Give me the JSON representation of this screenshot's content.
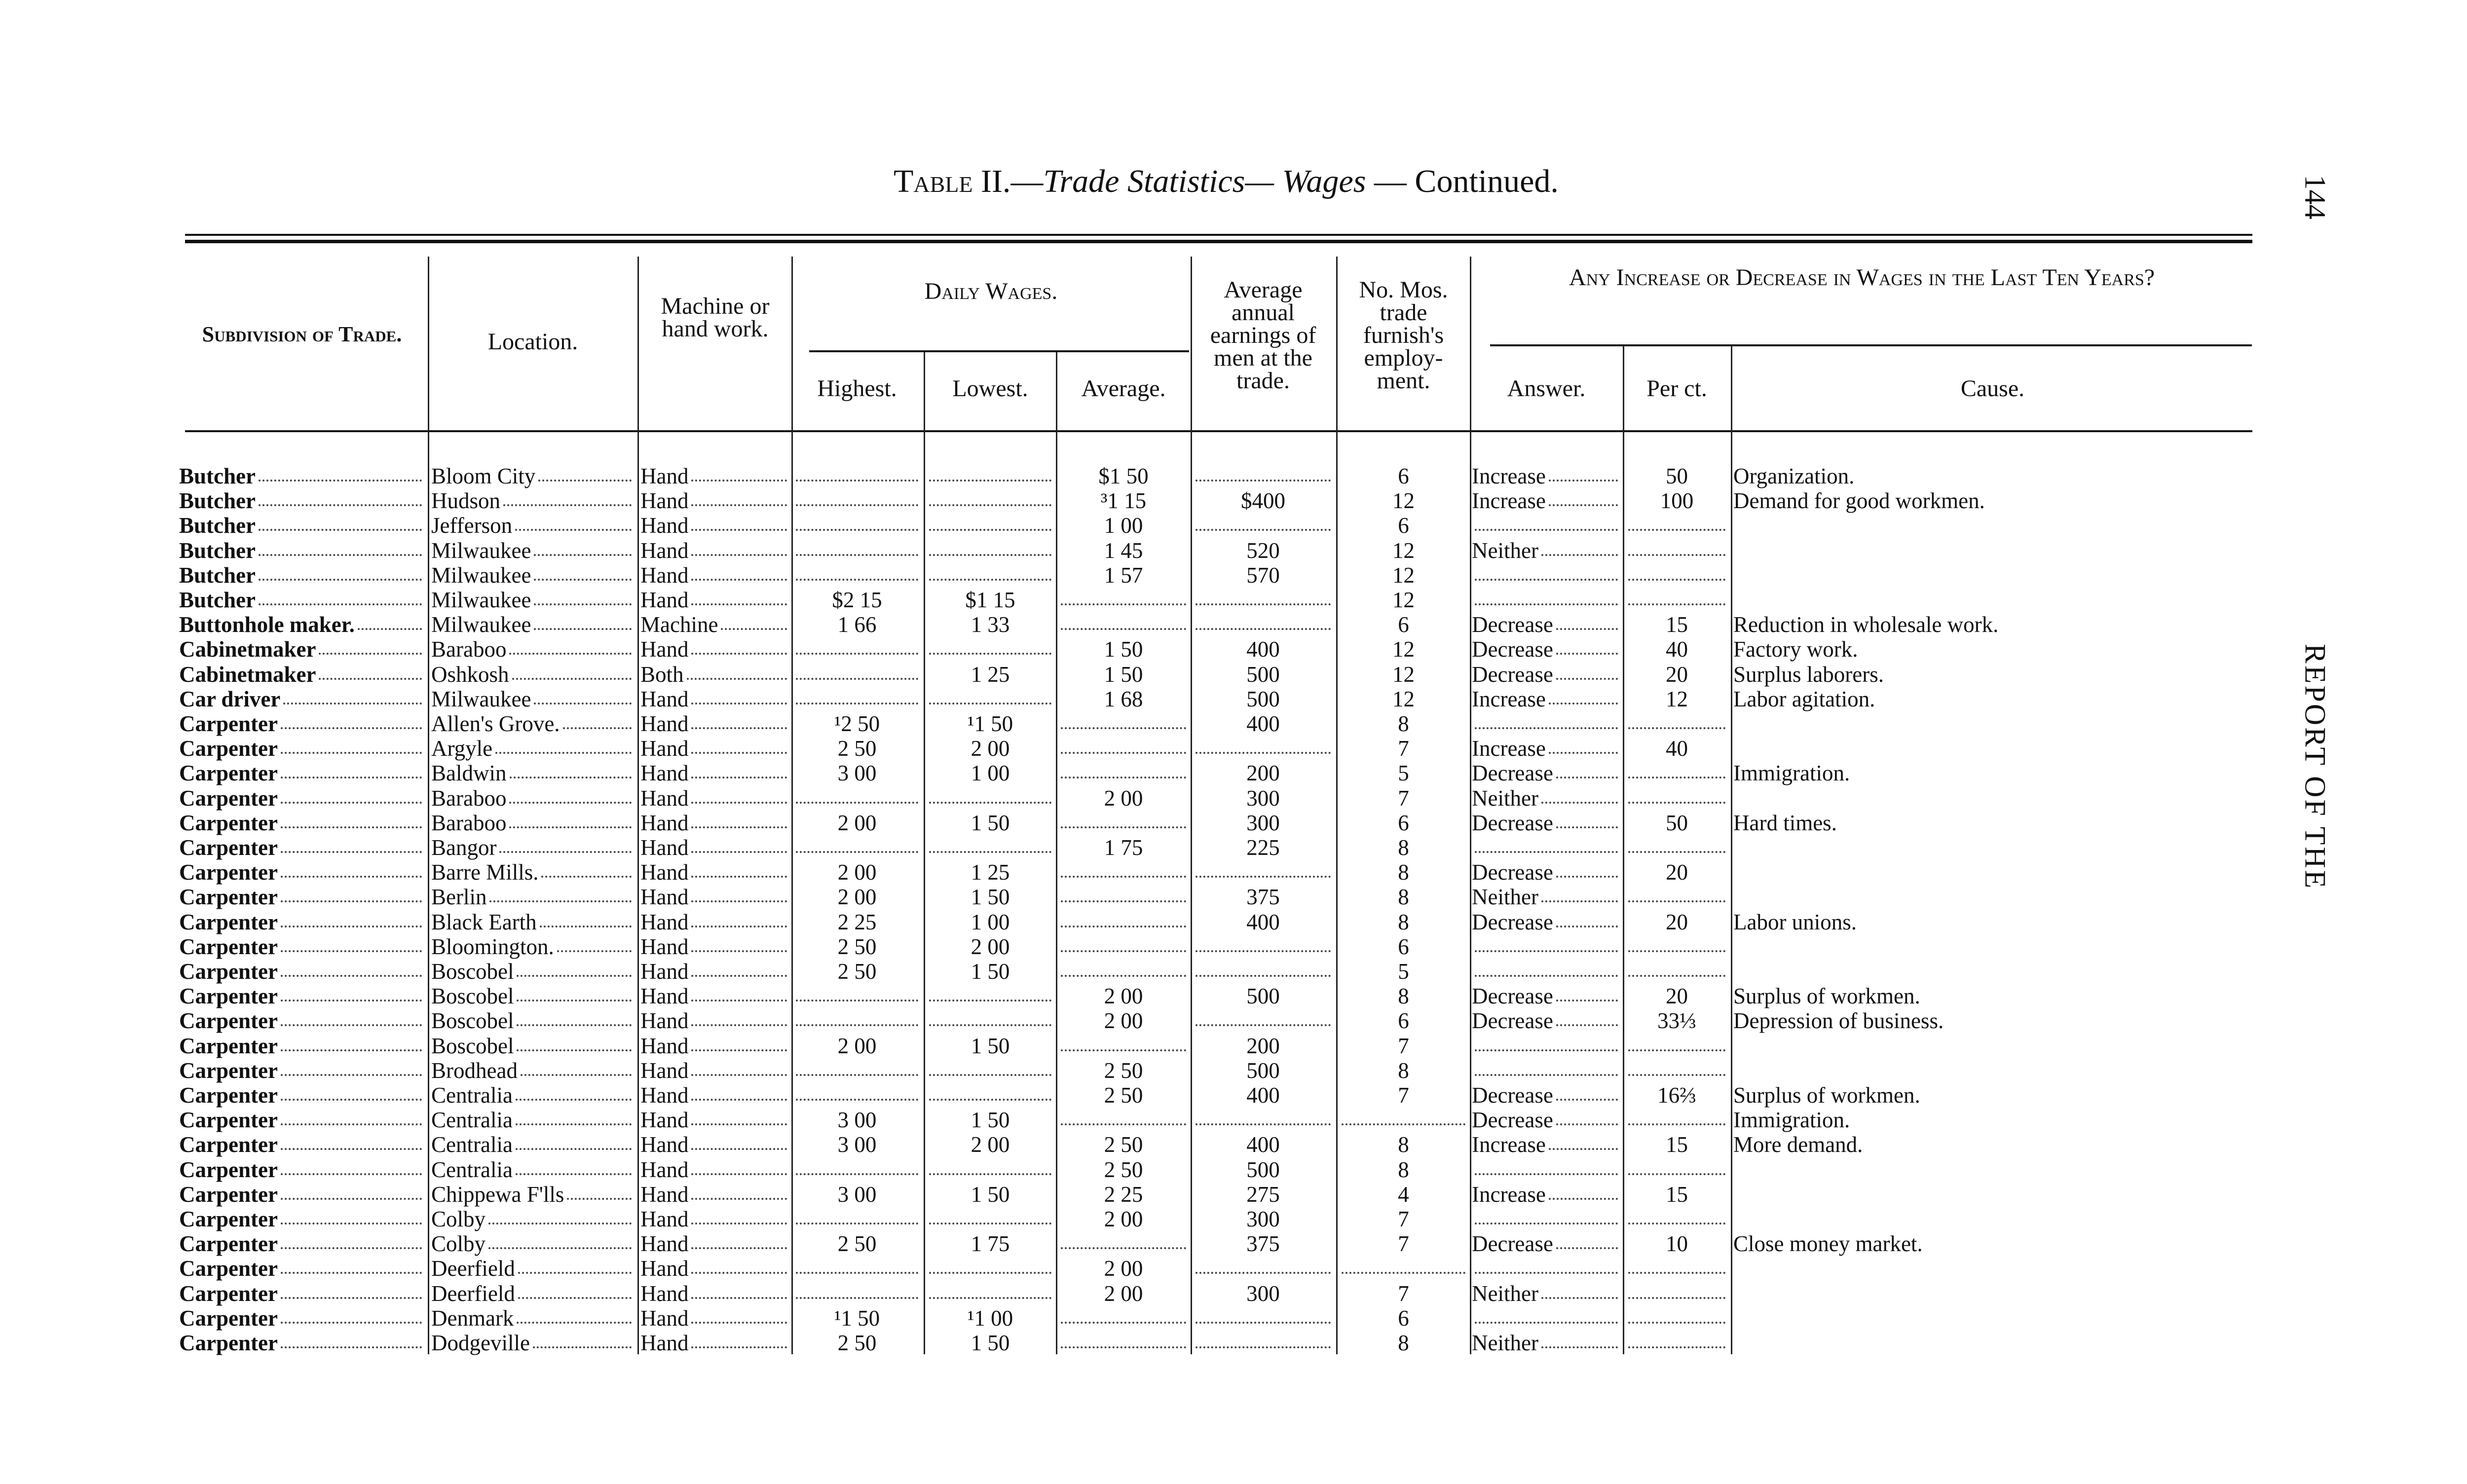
{
  "header": {
    "title_prefix": "Table II.—",
    "title_italic": "Trade Statistics— Wages",
    "title_suffix": " — Continued.",
    "page_number": "144",
    "running_head": "REPORT OF THE"
  },
  "table": {
    "columns": {
      "subdivision": "Subdivision of Trade.",
      "location": "Location.",
      "machine": "Machine or hand work.",
      "daily_wages": "Daily Wages.",
      "highest": "Highest.",
      "lowest": "Lowest.",
      "average": "Average.",
      "annual": "Average annual earnings of men at the trade.",
      "months": "No. Mos. trade furnish's employ-ment.",
      "change": "Any Increase or Decrease in Wages in the Last Ten Years?",
      "answer": "Answer.",
      "per_ct": "Per ct.",
      "cause": "Cause."
    },
    "rows": [
      [
        "Butcher",
        "Bloom City",
        "Hand",
        null,
        null,
        "$1 50",
        null,
        "6",
        "Increase",
        "50",
        "Organization."
      ],
      [
        "Butcher",
        "Hudson",
        "Hand",
        null,
        null,
        "³1 15",
        "$400",
        "12",
        "Increase",
        "100",
        "Demand for good workmen."
      ],
      [
        "Butcher",
        "Jefferson",
        "Hand",
        null,
        null,
        "1 00",
        null,
        "6",
        null,
        null,
        null
      ],
      [
        "Butcher",
        "Milwaukee",
        "Hand",
        null,
        null,
        "1 45",
        "520",
        "12",
        "Neither",
        null,
        null
      ],
      [
        "Butcher",
        "Milwaukee",
        "Hand",
        null,
        null,
        "1 57",
        "570",
        "12",
        null,
        null,
        null
      ],
      [
        "Butcher",
        "Milwaukee",
        "Hand",
        "$2 15",
        "$1 15",
        null,
        null,
        "12",
        null,
        null,
        null
      ],
      [
        "Buttonhole maker.",
        "Milwaukee",
        "Machine",
        "1 66",
        "1 33",
        null,
        null,
        "6",
        "Decrease",
        "15",
        "Reduction in wholesale work."
      ],
      [
        "Cabinetmaker",
        "Baraboo",
        "Hand",
        null,
        null,
        "1 50",
        "400",
        "12",
        "Decrease",
        "40",
        "Factory work."
      ],
      [
        "Cabinetmaker",
        "Oshkosh",
        "Both",
        null,
        "1 25",
        "1 50",
        "500",
        "12",
        "Decrease",
        "20",
        "Surplus laborers."
      ],
      [
        "Car driver",
        "Milwaukee",
        "Hand",
        null,
        null,
        "1 68",
        "500",
        "12",
        "Increase",
        "12",
        "Labor agitation."
      ],
      [
        "Carpenter",
        "Allen's Grove.",
        "Hand",
        "¹2 50",
        "¹1 50",
        null,
        "400",
        "8",
        null,
        null,
        null
      ],
      [
        "Carpenter",
        "Argyle",
        "Hand",
        "2 50",
        "2 00",
        null,
        null,
        "7",
        "Increase",
        "40",
        null
      ],
      [
        "Carpenter",
        "Baldwin",
        "Hand",
        "3 00",
        "1 00",
        null,
        "200",
        "5",
        "Decrease",
        null,
        "Immigration."
      ],
      [
        "Carpenter",
        "Baraboo",
        "Hand",
        null,
        null,
        "2 00",
        "300",
        "7",
        "Neither",
        null,
        null
      ],
      [
        "Carpenter",
        "Baraboo",
        "Hand",
        "2 00",
        "1 50",
        null,
        "300",
        "6",
        "Decrease",
        "50",
        "Hard times."
      ],
      [
        "Carpenter",
        "Bangor",
        "Hand",
        null,
        null,
        "1 75",
        "225",
        "8",
        null,
        null,
        null
      ],
      [
        "Carpenter",
        "Barre Mills.",
        "Hand",
        "2 00",
        "1 25",
        null,
        null,
        "8",
        "Decrease",
        "20",
        null
      ],
      [
        "Carpenter",
        "Berlin",
        "Hand",
        "2 00",
        "1 50",
        null,
        "375",
        "8",
        "Neither",
        null,
        null
      ],
      [
        "Carpenter",
        "Black Earth",
        "Hand",
        "2 25",
        "1 00",
        null,
        "400",
        "8",
        "Decrease",
        "20",
        "Labor unions."
      ],
      [
        "Carpenter",
        "Bloomington.",
        "Hand",
        "2 50",
        "2 00",
        null,
        null,
        "6",
        null,
        null,
        null
      ],
      [
        "Carpenter",
        "Boscobel",
        "Hand",
        "2 50",
        "1 50",
        null,
        null,
        "5",
        null,
        null,
        null
      ],
      [
        "Carpenter",
        "Boscobel",
        "Hand",
        null,
        null,
        "2 00",
        "500",
        "8",
        "Decrease",
        "20",
        "Surplus of workmen."
      ],
      [
        "Carpenter",
        "Boscobel",
        "Hand",
        null,
        null,
        "2 00",
        null,
        "6",
        "Decrease",
        "33⅓",
        "Depression of business."
      ],
      [
        "Carpenter",
        "Boscobel",
        "Hand",
        "2 00",
        "1 50",
        null,
        "200",
        "7",
        null,
        null,
        null
      ],
      [
        "Carpenter",
        "Brodhead",
        "Hand",
        null,
        null,
        "2 50",
        "500",
        "8",
        null,
        null,
        null
      ],
      [
        "Carpenter",
        "Centralia",
        "Hand",
        null,
        null,
        "2 50",
        "400",
        "7",
        "Decrease",
        "16⅔",
        "Surplus of workmen."
      ],
      [
        "Carpenter",
        "Centralia",
        "Hand",
        "3 00",
        "1 50",
        null,
        null,
        null,
        "Decrease",
        null,
        "Immigration."
      ],
      [
        "Carpenter",
        "Centralia",
        "Hand",
        "3 00",
        "2 00",
        "2 50",
        "400",
        "8",
        "Increase",
        "15",
        "More demand."
      ],
      [
        "Carpenter",
        "Centralia",
        "Hand",
        null,
        null,
        "2 50",
        "500",
        "8",
        null,
        null,
        null
      ],
      [
        "Carpenter",
        "Chippewa F'lls",
        "Hand",
        "3 00",
        "1 50",
        "2 25",
        "275",
        "4",
        "Increase",
        "15",
        null
      ],
      [
        "Carpenter",
        "Colby",
        "Hand",
        null,
        null,
        "2 00",
        "300",
        "7",
        null,
        null,
        null
      ],
      [
        "Carpenter",
        "Colby",
        "Hand",
        "2 50",
        "1 75",
        null,
        "375",
        "7",
        "Decrease",
        "10",
        "Close money market."
      ],
      [
        "Carpenter",
        "Deerfield",
        "Hand",
        null,
        null,
        "2 00",
        null,
        null,
        null,
        null,
        null
      ],
      [
        "Carpenter",
        "Deerfield",
        "Hand",
        null,
        null,
        "2 00",
        "300",
        "7",
        "Neither",
        null,
        null
      ],
      [
        "Carpenter",
        "Denmark",
        "Hand",
        "¹1 50",
        "¹1 00",
        null,
        null,
        "6",
        null,
        null,
        null
      ],
      [
        "Carpenter",
        "Dodgeville",
        "Hand",
        "2 50",
        "1 50",
        null,
        null,
        "8",
        "Neither",
        null,
        null
      ]
    ]
  }
}
